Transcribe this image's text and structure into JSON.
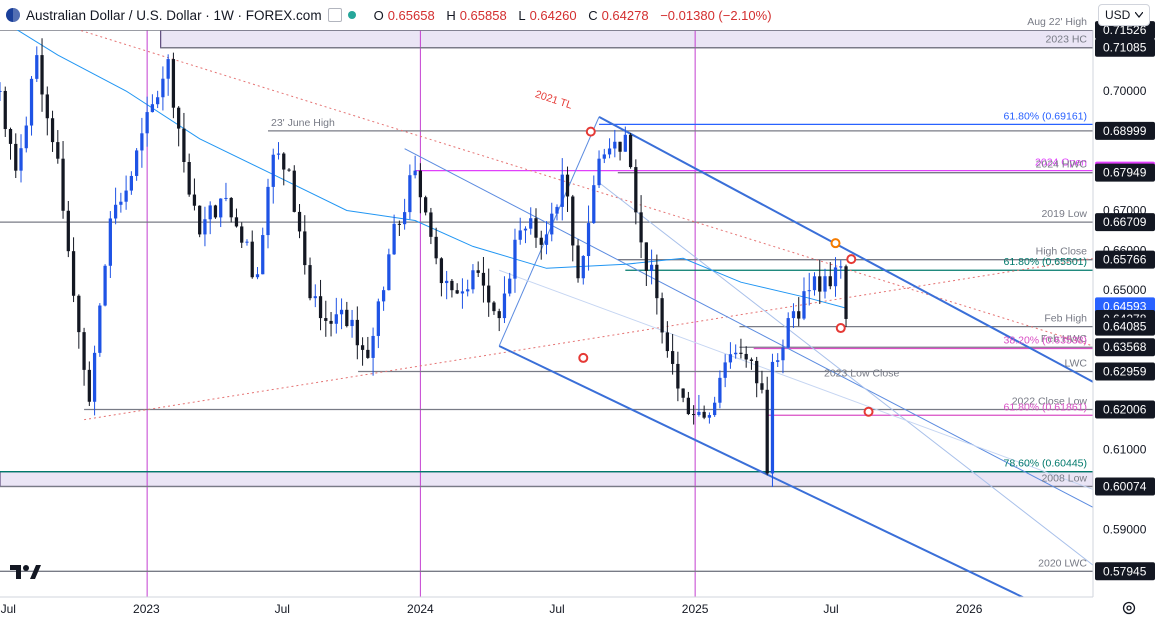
{
  "header": {
    "symbol_title": "Australian Dollar / U.S. Dollar · 1W · FOREX.com",
    "open_label": "O",
    "open": "0.65658",
    "high_label": "H",
    "high": "0.65858",
    "low_label": "L",
    "low": "0.64260",
    "close_label": "C",
    "close": "0.64278",
    "change": "−0.01380 (−2.10%)"
  },
  "currency_select": {
    "value": "USD"
  },
  "icons": [
    "flag-icon",
    "checkbox-icon",
    "status-dot-icon",
    "chevron-down-icon",
    "tradingview-logo-icon",
    "settings-icon"
  ],
  "colors": {
    "bull": "#1e53e5",
    "bear": "#131722",
    "ma": "#2196f3",
    "channel": "#3a6fd8",
    "trend_red": "#e57373",
    "magenta": "#c33fd0",
    "zone": "#d9d0ec",
    "price_tag": "#2962ff",
    "open_2024": "#e040fb"
  },
  "chart_data": {
    "type": "candlestick",
    "timeframe": "1W",
    "y_range": [
      0.573,
      0.7153
    ],
    "x_range": [
      "2022-06-20",
      "2026-06-15"
    ],
    "x_tick_labels": [
      {
        "date": "2022-07-01",
        "label": "Jul"
      },
      {
        "date": "2023-01-01",
        "label": "2023"
      },
      {
        "date": "2023-07-01",
        "label": "Jul"
      },
      {
        "date": "2024-01-01",
        "label": "2024"
      },
      {
        "date": "2024-07-01",
        "label": "Jul"
      },
      {
        "date": "2025-01-01",
        "label": "2025"
      },
      {
        "date": "2025-07-01",
        "label": "Jul"
      },
      {
        "date": "2026-01-01",
        "label": "2026"
      }
    ],
    "y_tick_labels": [
      {
        "value": 0.7,
        "label": "0.70000"
      },
      {
        "value": 0.69,
        "label": "0.69000"
      },
      {
        "value": 0.68,
        "label": "0.68000"
      },
      {
        "value": 0.67,
        "label": "0.67000"
      },
      {
        "value": 0.66,
        "label": "0.66000"
      },
      {
        "value": 0.65,
        "label": "0.65000"
      },
      {
        "value": 0.61,
        "label": "0.61000"
      },
      {
        "value": 0.59,
        "label": "0.59000"
      }
    ],
    "price_tags": [
      {
        "value": 0.71526,
        "label": "0.71526",
        "style": "level"
      },
      {
        "value": 0.71085,
        "label": "0.71085",
        "style": "level"
      },
      {
        "value": 0.68999,
        "label": "0.68999",
        "style": "level"
      },
      {
        "value": 0.68,
        "label": "2024 Open",
        "style": "magenta"
      },
      {
        "value": 0.67949,
        "label": "0.67949",
        "style": "level"
      },
      {
        "value": 0.66709,
        "label": "0.66709",
        "style": "level"
      },
      {
        "value": 0.65766,
        "label": "0.65766",
        "style": "level"
      },
      {
        "value": 0.64593,
        "label": "0.64593",
        "style": "current"
      },
      {
        "value": 0.64278,
        "label": "0.64278",
        "style": "level"
      },
      {
        "value": 0.64085,
        "label": "0.64085",
        "style": "level"
      },
      {
        "value": 0.63568,
        "label": "0.63568",
        "style": "level"
      },
      {
        "value": 0.62959,
        "label": "0.62959",
        "style": "level"
      },
      {
        "value": 0.62006,
        "label": "0.62006",
        "style": "level"
      },
      {
        "value": 0.60074,
        "label": "0.60074",
        "style": "level"
      },
      {
        "value": 0.57945,
        "label": "0.57945",
        "style": "level"
      }
    ],
    "levels": [
      {
        "value": 0.71526,
        "start": "2022-06-20",
        "label": "Aug 22' High",
        "color": "#787b86"
      },
      {
        "value": 0.71085,
        "start": "2023-01-20",
        "label": "2023 HC",
        "color": "#787b86"
      },
      {
        "value": 0.68999,
        "start": "2023-06-12",
        "label": "23' June High",
        "label_side": "left",
        "color": "#787b86"
      },
      {
        "value": 0.68,
        "start": "2023-12-25",
        "label": "2024 Open",
        "color": "#e040fb"
      },
      {
        "value": 0.67949,
        "start": "2024-09-20",
        "label": "2024 HWC",
        "color": "#787b86"
      },
      {
        "value": 0.66709,
        "start": "2022-06-20",
        "label": "2019 Low",
        "color": "#787b86"
      },
      {
        "value": 0.65766,
        "start": "2024-09-20",
        "label": "High Close",
        "color": "#787b86"
      },
      {
        "value": 0.64085,
        "start": "2025-03-01",
        "label": "Feb High",
        "color": "#787b86"
      },
      {
        "value": 0.63568,
        "start": "2025-03-01",
        "label": "Feb HWC",
        "color": "#787b86"
      },
      {
        "value": 0.62959,
        "start": "2023-10-10",
        "label": "LWC",
        "color": "#787b86"
      },
      {
        "value": 0.62006,
        "start": "2022-10-10",
        "label": "2022 Close Low",
        "color": "#787b86"
      },
      {
        "value": 0.60074,
        "start": "2022-06-20",
        "label": "2008 Low",
        "color": "#787b86"
      },
      {
        "value": 0.57945,
        "start": "2022-06-20",
        "label": "2020 LWC",
        "color": "#787b86"
      }
    ],
    "zones": [
      {
        "from": 0.71085,
        "to": 0.71526,
        "start": "2023-01-20"
      },
      {
        "from": 0.60074,
        "to": 0.60445,
        "start": "2022-06-20"
      }
    ],
    "fib_levels": [
      {
        "value": 0.69161,
        "start": "2024-08-26",
        "label": "61.80% (0.69161)",
        "color": "#2962ff"
      },
      {
        "value": 0.65501,
        "start": "2024-09-30",
        "label": "61.80% (0.65501)",
        "color": "#00796b"
      },
      {
        "value": 0.63538,
        "start": "2025-03-20",
        "label": "38.20% (0.63538)",
        "color": "#d94fc4"
      },
      {
        "value": 0.61861,
        "start": "2025-04-07",
        "label": "61.80% (0.61861)",
        "color": "#d94fc4"
      },
      {
        "value": 0.60445,
        "start": "2022-06-20",
        "label": "78.60% (0.60445)",
        "color": "#00796b"
      }
    ],
    "annotations": [
      {
        "text": "2021 TL",
        "date": "2024-06-01",
        "value": 0.6985,
        "color": "#e53935",
        "rotate": 18
      },
      {
        "text": "2023 Low Close",
        "date": "2025-09-30",
        "value": 0.6283,
        "color": "#787b86"
      }
    ],
    "vertical_lines": [
      "2023-01-02",
      "2024-01-01",
      "2025-01-01"
    ],
    "markers": [
      {
        "date": "2024-08-15",
        "value": 0.6898,
        "color": "#e53935"
      },
      {
        "date": "2024-08-05",
        "value": 0.633,
        "color": "#e53935"
      },
      {
        "date": "2025-07-14",
        "value": 0.6405,
        "color": "#e53935"
      },
      {
        "date": "2025-07-28",
        "value": 0.6578,
        "color": "#e53935"
      },
      {
        "date": "2025-08-20",
        "value": 0.6195,
        "color": "#e53935"
      },
      {
        "date": "2025-07-07",
        "value": 0.6618,
        "color": "#f57c00"
      }
    ],
    "trendlines": [
      {
        "from": {
          "date": "2022-06-20",
          "value": 0.7215
        },
        "to": {
          "date": "2026-06-15",
          "value": 0.636
        },
        "color": "#e57373",
        "dash": "2,3"
      },
      {
        "from": {
          "date": "2022-10-10",
          "value": 0.6175
        },
        "to": {
          "date": "2026-06-15",
          "value": 0.658
        },
        "color": "#e57373",
        "dash": "2,3"
      },
      {
        "from": {
          "date": "2024-08-26",
          "value": 0.6935
        },
        "to": {
          "date": "2026-06-15",
          "value": 0.627
        },
        "color": "#3a6fd8",
        "width": 2
      },
      {
        "from": {
          "date": "2024-04-15",
          "value": 0.636
        },
        "to": {
          "date": "2026-06-15",
          "value": 0.5645
        },
        "color": "#3a6fd8",
        "width": 2
      },
      {
        "from": {
          "date": "2023-12-11",
          "value": 0.6855
        },
        "to": {
          "date": "2026-06-15",
          "value": 0.5955
        },
        "color": "#5b8be0",
        "width": 1
      },
      {
        "from": {
          "date": "2024-04-15",
          "value": 0.636
        },
        "to": {
          "date": "2024-08-26",
          "value": 0.6935
        },
        "color": "#5b8be0",
        "width": 1
      },
      {
        "from": {
          "date": "2024-08-26",
          "value": 0.677
        },
        "to": {
          "date": "2026-06-15",
          "value": 0.581
        },
        "color": "#a8c0ea",
        "width": 1
      },
      {
        "from": {
          "date": "2024-04-15",
          "value": 0.655
        },
        "to": {
          "date": "2026-06-15",
          "value": 0.6
        },
        "color": "#c5d5f2",
        "width": 1
      }
    ],
    "candle_series": {
      "start": "2022-06-20",
      "end": "2025-07-21",
      "anchor_closes": [
        {
          "date": "2022-06-20",
          "value": 0.7
        },
        {
          "date": "2022-07-11",
          "value": 0.68
        },
        {
          "date": "2022-08-08",
          "value": 0.709
        },
        {
          "date": "2022-09-05",
          "value": 0.683
        },
        {
          "date": "2022-10-10",
          "value": 0.63
        },
        {
          "date": "2022-10-17",
          "value": 0.622
        },
        {
          "date": "2022-11-14",
          "value": 0.668
        },
        {
          "date": "2022-12-05",
          "value": 0.675
        },
        {
          "date": "2023-01-30",
          "value": 0.708
        },
        {
          "date": "2023-02-27",
          "value": 0.674
        },
        {
          "date": "2023-03-13",
          "value": 0.664
        },
        {
          "date": "2023-04-10",
          "value": 0.673
        },
        {
          "date": "2023-05-01",
          "value": 0.666
        },
        {
          "date": "2023-05-29",
          "value": 0.654
        },
        {
          "date": "2023-06-19",
          "value": 0.684
        },
        {
          "date": "2023-07-10",
          "value": 0.68
        },
        {
          "date": "2023-08-07",
          "value": 0.648
        },
        {
          "date": "2023-08-21",
          "value": 0.643
        },
        {
          "date": "2023-09-25",
          "value": 0.641
        },
        {
          "date": "2023-10-23",
          "value": 0.633
        },
        {
          "date": "2023-11-20",
          "value": 0.659
        },
        {
          "date": "2023-12-25",
          "value": 0.68
        },
        {
          "date": "2024-01-22",
          "value": 0.658
        },
        {
          "date": "2024-02-12",
          "value": 0.65
        },
        {
          "date": "2024-03-11",
          "value": 0.655
        },
        {
          "date": "2024-04-15",
          "value": 0.643
        },
        {
          "date": "2024-05-13",
          "value": 0.665
        },
        {
          "date": "2024-06-17",
          "value": 0.664
        },
        {
          "date": "2024-07-08",
          "value": 0.679
        },
        {
          "date": "2024-07-29",
          "value": 0.653
        },
        {
          "date": "2024-08-26",
          "value": 0.683
        },
        {
          "date": "2024-09-30",
          "value": 0.689
        },
        {
          "date": "2024-10-21",
          "value": 0.662
        },
        {
          "date": "2024-11-11",
          "value": 0.648
        },
        {
          "date": "2024-12-16",
          "value": 0.623
        },
        {
          "date": "2025-01-13",
          "value": 0.618
        },
        {
          "date": "2025-02-03",
          "value": 0.628
        },
        {
          "date": "2025-03-03",
          "value": 0.634
        },
        {
          "date": "2025-03-31",
          "value": 0.625
        },
        {
          "date": "2025-04-07",
          "value": 0.604
        },
        {
          "date": "2025-04-14",
          "value": 0.632
        },
        {
          "date": "2025-05-05",
          "value": 0.643
        },
        {
          "date": "2025-06-02",
          "value": 0.65
        },
        {
          "date": "2025-06-30",
          "value": 0.651
        },
        {
          "date": "2025-07-14",
          "value": 0.656
        },
        {
          "date": "2025-07-21",
          "value": 0.64278
        }
      ]
    },
    "moving_average": [
      {
        "date": "2022-06-20",
        "value": 0.718
      },
      {
        "date": "2022-09-05",
        "value": 0.709
      },
      {
        "date": "2022-12-05",
        "value": 0.7
      },
      {
        "date": "2023-03-13",
        "value": 0.688
      },
      {
        "date": "2023-06-19",
        "value": 0.679
      },
      {
        "date": "2023-09-25",
        "value": 0.67
      },
      {
        "date": "2023-12-25",
        "value": 0.6675
      },
      {
        "date": "2024-03-11",
        "value": 0.661
      },
      {
        "date": "2024-06-17",
        "value": 0.6555
      },
      {
        "date": "2024-09-30",
        "value": 0.6565
      },
      {
        "date": "2024-12-16",
        "value": 0.658
      },
      {
        "date": "2025-03-03",
        "value": 0.652
      },
      {
        "date": "2025-06-02",
        "value": 0.648
      },
      {
        "date": "2025-07-21",
        "value": 0.6455
      }
    ]
  }
}
